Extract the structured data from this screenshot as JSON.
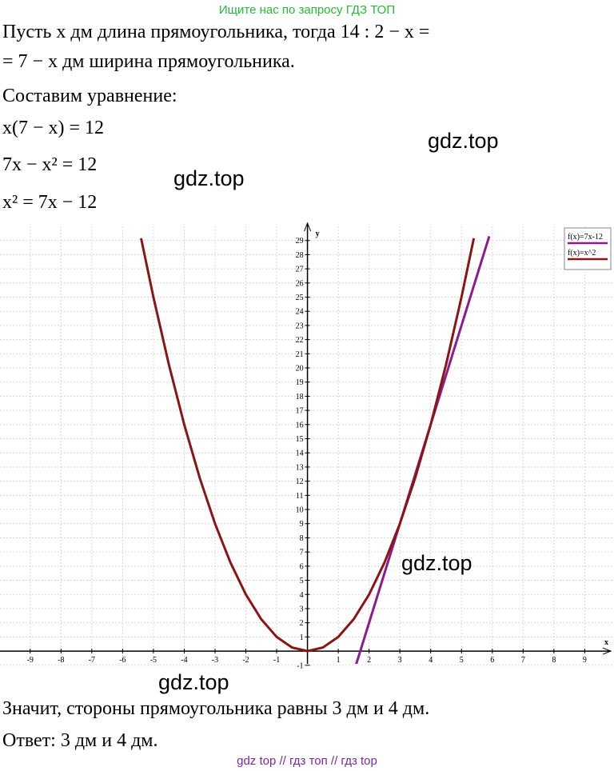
{
  "header": {
    "text": "Ищите нас по запросу ГДЗ ТОП"
  },
  "solution": {
    "lines": [
      "Пусть x дм длина прямоугольника, тогда 14 : 2 − x =",
      "= 7 − x дм ширина прямоугольника.",
      "Составим уравнение:",
      "x(7 − x) = 12",
      "7x − x² = 12",
      "x² = 7x − 12"
    ]
  },
  "watermarks": [
    "gdz.top",
    "gdz.top",
    "gdz.top",
    "gdz.top"
  ],
  "chart_data": {
    "type": "line",
    "x_label": "x",
    "y_label": "y",
    "xlim": [
      -9.98,
      9.95
    ],
    "ylim": [
      -0.9,
      30
    ],
    "xticks": [
      -9,
      -8,
      -7,
      -6,
      -5,
      -4,
      -3,
      -2,
      -1,
      1,
      2,
      3,
      4,
      5,
      6,
      7,
      8,
      9
    ],
    "yticks": [
      -1,
      1,
      2,
      3,
      4,
      5,
      6,
      7,
      8,
      9,
      10,
      11,
      12,
      13,
      14,
      15,
      16,
      17,
      18,
      19,
      20,
      21,
      22,
      23,
      24,
      25,
      26,
      27,
      28,
      29
    ],
    "grid": true,
    "legend": "top-right",
    "series": [
      {
        "name": "f(x)=7x-12",
        "color": "#8b1c8b",
        "x": [
          1.5,
          5.9
        ],
        "values": [
          -1.5,
          29.3
        ]
      },
      {
        "name": "f(x)=x^2",
        "color": "#8b1414",
        "x": [
          -5.4,
          -5,
          -4.5,
          -4,
          -3.5,
          -3,
          -2.5,
          -2,
          -1.5,
          -1,
          -0.5,
          0,
          0.5,
          1,
          1.5,
          2,
          2.5,
          3,
          3.5,
          4,
          4.5,
          5,
          5.4
        ],
        "values": [
          29.16,
          25,
          20.25,
          16,
          12.25,
          9,
          6.25,
          4,
          2.25,
          1,
          0.25,
          0,
          0.25,
          1,
          2.25,
          4,
          6.25,
          9,
          12.25,
          16,
          20.25,
          25,
          29.16
        ]
      }
    ]
  },
  "conclusion": {
    "lines": [
      "Значит, стороны прямоугольника равны 3 дм и 4 дм.",
      "Ответ: 3 дм и 4 дм."
    ]
  },
  "footer": {
    "text": "gdz top  //  гдз топ  //  гдз top"
  }
}
